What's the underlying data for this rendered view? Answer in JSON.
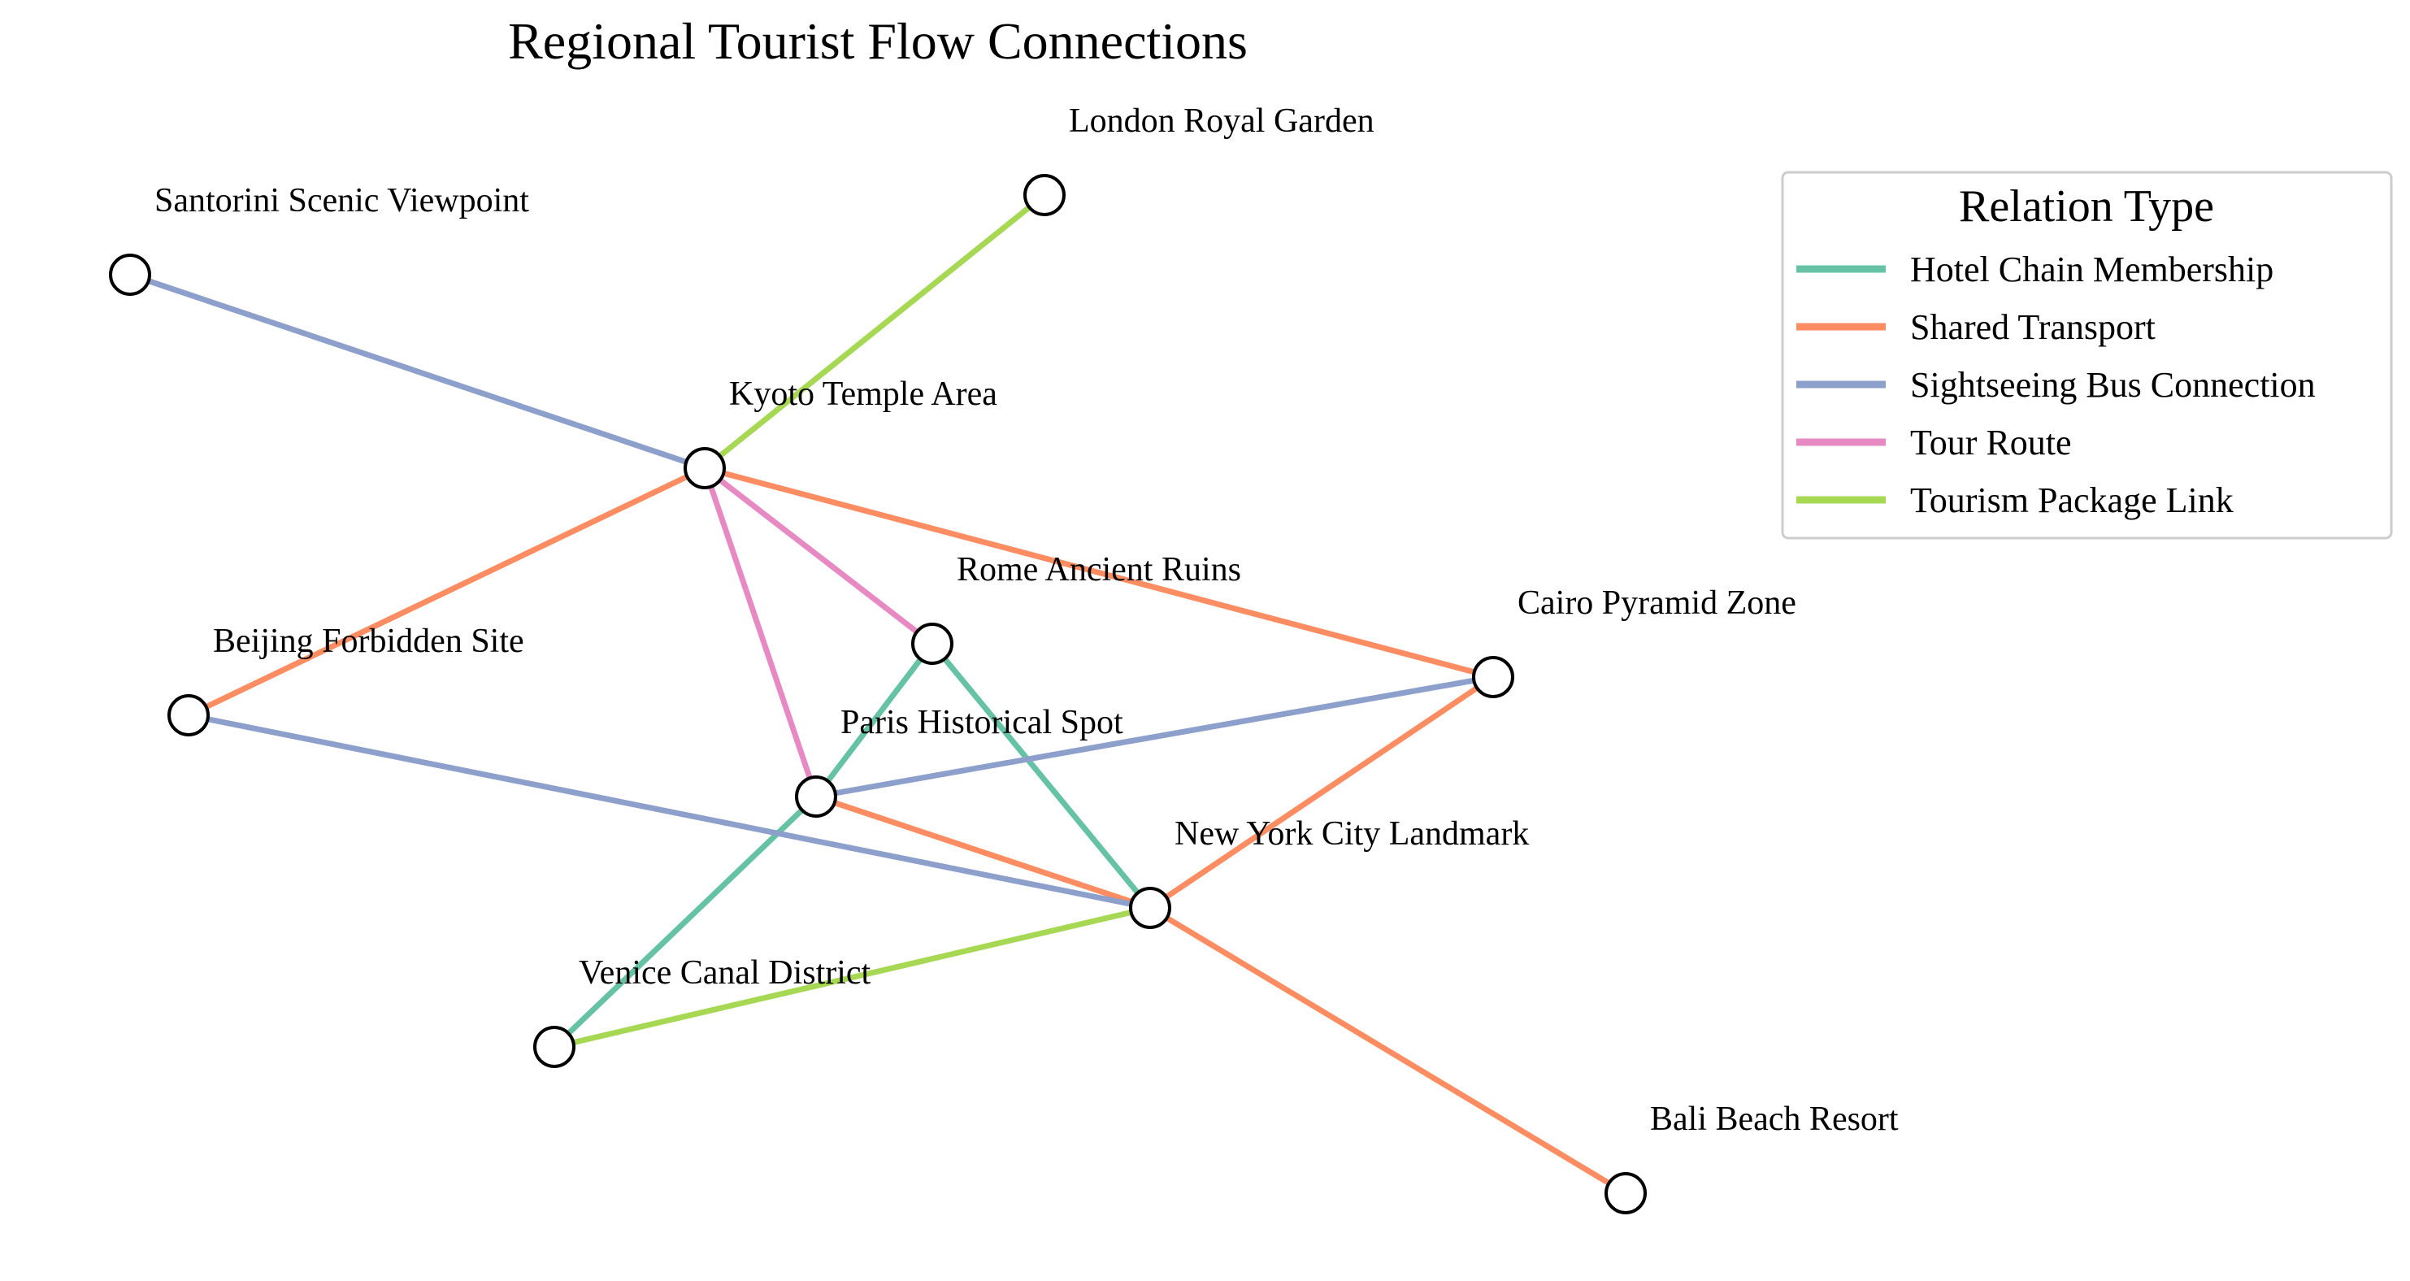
{
  "title": "Regional Tourist Flow Connections",
  "legend": {
    "title": "Relation Type",
    "items": [
      {
        "label": "Hotel Chain Membership",
        "color": "#66c2a5"
      },
      {
        "label": "Shared Transport",
        "color": "#fc8d62"
      },
      {
        "label": "Sightseeing Bus Connection",
        "color": "#8da0cb"
      },
      {
        "label": "Tour Route",
        "color": "#e78ac3"
      },
      {
        "label": "Tourism Package Link",
        "color": "#a6d854"
      }
    ]
  },
  "nodes": [
    {
      "id": "london",
      "label": "London Royal Garden"
    },
    {
      "id": "santorini",
      "label": "Santorini Scenic Viewpoint"
    },
    {
      "id": "kyoto",
      "label": "Kyoto Temple Area"
    },
    {
      "id": "rome",
      "label": "Rome Ancient Ruins"
    },
    {
      "id": "cairo",
      "label": "Cairo Pyramid Zone"
    },
    {
      "id": "beijing",
      "label": "Beijing Forbidden Site"
    },
    {
      "id": "paris",
      "label": "Paris Historical Spot"
    },
    {
      "id": "nyc",
      "label": "New York City Landmark"
    },
    {
      "id": "venice",
      "label": "Venice Canal District"
    },
    {
      "id": "bali",
      "label": "Bali Beach Resort"
    }
  ],
  "edges": [
    {
      "source": "kyoto",
      "target": "london",
      "relation": "Tourism Package Link"
    },
    {
      "source": "santorini",
      "target": "kyoto",
      "relation": "Sightseeing Bus Connection"
    },
    {
      "source": "kyoto",
      "target": "beijing",
      "relation": "Shared Transport"
    },
    {
      "source": "kyoto",
      "target": "cairo",
      "relation": "Shared Transport"
    },
    {
      "source": "kyoto",
      "target": "rome",
      "relation": "Tour Route"
    },
    {
      "source": "kyoto",
      "target": "paris",
      "relation": "Tour Route"
    },
    {
      "source": "rome",
      "target": "paris",
      "relation": "Hotel Chain Membership"
    },
    {
      "source": "rome",
      "target": "nyc",
      "relation": "Hotel Chain Membership"
    },
    {
      "source": "paris",
      "target": "cairo",
      "relation": "Sightseeing Bus Connection"
    },
    {
      "source": "paris",
      "target": "nyc",
      "relation": "Shared Transport"
    },
    {
      "source": "paris",
      "target": "venice",
      "relation": "Hotel Chain Membership"
    },
    {
      "source": "beijing",
      "target": "nyc",
      "relation": "Sightseeing Bus Connection"
    },
    {
      "source": "cairo",
      "target": "nyc",
      "relation": "Shared Transport"
    },
    {
      "source": "nyc",
      "target": "venice",
      "relation": "Tourism Package Link"
    },
    {
      "source": "nyc",
      "target": "bali",
      "relation": "Shared Transport"
    }
  ]
}
